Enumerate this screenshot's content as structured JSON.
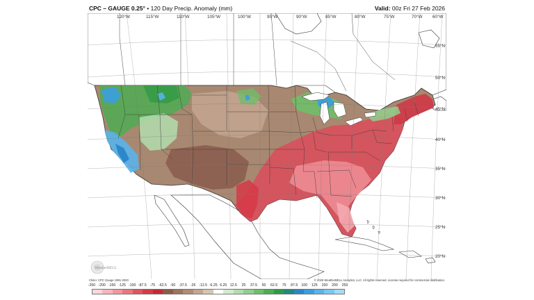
{
  "header": {
    "product": "CPC – GAUGE 0.25°",
    "subtitle": "• 120 Day Precip. Anomaly (mm)",
    "valid_label": "Valid:",
    "valid_time": "00z Fri 27 Feb 2026"
  },
  "map": {
    "lon_labels": [
      "120°W",
      "115°W",
      "110°W",
      "105°W",
      "100°W",
      "95°W",
      "90°W",
      "85°W",
      "80°W",
      "75°W",
      "70°W",
      "60°W"
    ],
    "lat_labels": [
      "55°N",
      "50°N",
      "45°N",
      "40°N",
      "35°N",
      "30°N",
      "25°N",
      "20°N"
    ],
    "logo": "WeatherBELL"
  },
  "footer": {
    "climo": "Climo: CPC Gauge 1991-2020",
    "credit": "© 2026 WeatherBELL Analytics, LLC. All rights reserved. License required for commercial distribution."
  },
  "colorbar": {
    "labels": [
      "-250",
      "-200",
      "-150",
      "-125",
      "-100",
      "-87.5",
      "-75",
      "-62.5",
      "-50",
      "-37.5",
      "-25",
      "-12.5",
      "-6.25",
      "6.25",
      "12.5",
      "25",
      "37.5",
      "50",
      "62.5",
      "75",
      "87.5",
      "100",
      "125",
      "150",
      "200",
      "250"
    ],
    "colors": [
      "#fcd7d9",
      "#f7b6ba",
      "#f1969d",
      "#ea7680",
      "#e05560",
      "#d63a47",
      "#c42a36",
      "#8a5c4c",
      "#9c7460",
      "#b08c76",
      "#c4a690",
      "#d8c4b2",
      "#ffffff",
      "#d2ebcf",
      "#b3ddad",
      "#92cf8b",
      "#6dbf69",
      "#4aae52",
      "#2f9a45",
      "#1f8a7a",
      "#2a86c8",
      "#3a9ee0",
      "#58b4ea",
      "#7cc6f0",
      "#a4daf6"
    ]
  }
}
